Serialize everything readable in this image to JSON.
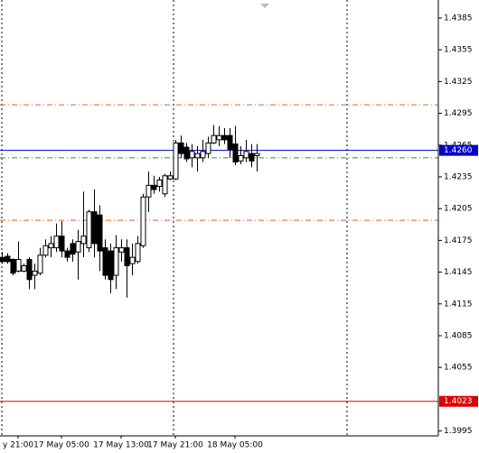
{
  "chart_data": {
    "type": "candlestick",
    "categories": [
      null,
      null,
      null,
      "y 21:00",
      null,
      null,
      null,
      null,
      null,
      null,
      null,
      "17 May 05:00",
      null,
      null,
      null,
      null,
      null,
      null,
      null,
      null,
      null,
      null,
      "17 May 13:00",
      null,
      null,
      null,
      null,
      null,
      null,
      null,
      null,
      null,
      "17 May 21:00",
      null,
      null,
      null,
      null,
      null,
      null,
      null,
      null,
      null,
      null,
      "18 May 05:00",
      null,
      null,
      null,
      null
    ],
    "open": [
      1.4159,
      1.416,
      1.4157,
      1.4146,
      1.4146,
      1.4157,
      1.4142,
      1.4144,
      1.4161,
      1.4168,
      1.4168,
      1.4179,
      1.4165,
      1.4172,
      1.4164,
      1.4172,
      1.4168,
      1.4202,
      1.4199,
      1.4168,
      1.4165,
      1.4142,
      1.4164,
      1.4168,
      1.4153,
      1.4155,
      1.417,
      1.4216,
      1.4227,
      1.4226,
      1.4219,
      1.4233,
      1.4233,
      1.4267,
      1.4263,
      1.4253,
      1.4253,
      1.4253,
      1.4257,
      1.4267,
      1.427,
      1.4274,
      1.4274,
      1.4266,
      1.425,
      1.4253,
      1.4257,
      1.4255
    ],
    "high": [
      1.4164,
      1.4163,
      1.4158,
      1.4174,
      1.4153,
      1.4159,
      1.4153,
      1.4168,
      1.4176,
      1.4179,
      1.4191,
      1.4193,
      1.4168,
      1.4176,
      1.4185,
      1.4221,
      1.4204,
      1.4223,
      1.4208,
      1.4176,
      1.4172,
      1.418,
      1.4176,
      1.4176,
      1.4172,
      1.4179,
      1.4219,
      1.424,
      1.4236,
      1.4235,
      1.4238,
      1.424,
      1.427,
      1.4274,
      1.4267,
      1.4266,
      1.4264,
      1.427,
      1.4273,
      1.4284,
      1.4283,
      1.4281,
      1.4281,
      1.4283,
      1.4264,
      1.427,
      1.4266,
      1.4266
    ],
    "low": [
      1.4153,
      1.4153,
      1.4142,
      1.4145,
      1.4145,
      1.4129,
      1.4129,
      1.4142,
      1.4159,
      1.4159,
      1.4164,
      1.4159,
      1.4155,
      1.4155,
      1.4138,
      1.4159,
      1.4164,
      1.4159,
      1.4146,
      1.4138,
      1.4125,
      1.4129,
      1.4155,
      1.4121,
      1.4142,
      1.4153,
      1.4168,
      1.4202,
      1.4219,
      1.4221,
      1.4216,
      1.4232,
      1.4232,
      1.4253,
      1.4249,
      1.4244,
      1.424,
      1.4249,
      1.4253,
      1.4266,
      1.4264,
      1.4266,
      1.4253,
      1.4246,
      1.4247,
      1.4249,
      1.4244,
      1.424
    ],
    "close": [
      1.4155,
      1.4155,
      1.4144,
      1.4157,
      1.4151,
      1.4138,
      1.4146,
      1.4161,
      1.417,
      1.4172,
      1.4179,
      1.4165,
      1.4159,
      1.4162,
      1.4174,
      1.4179,
      1.4202,
      1.4172,
      1.4165,
      1.4142,
      1.4138,
      1.4168,
      1.4168,
      1.4151,
      1.4159,
      1.4172,
      1.4216,
      1.4227,
      1.4223,
      1.4232,
      1.4236,
      1.4236,
      1.4267,
      1.4257,
      1.4252,
      1.4259,
      1.4257,
      1.4259,
      1.4267,
      1.4274,
      1.4274,
      1.427,
      1.4261,
      1.4249,
      1.4255,
      1.4259,
      1.425,
      1.4257
    ],
    "ylim": [
      1.39904,
      1.4402
    ],
    "yticks": [
      1.4385,
      1.4355,
      1.4325,
      1.4295,
      1.4265,
      1.4235,
      1.4205,
      1.4175,
      1.4145,
      1.4115,
      1.4085,
      1.4055,
      1.3995
    ],
    "price_lines": [
      {
        "value": 1.426,
        "label": "1.4260",
        "color": "#0000c8"
      },
      {
        "value": 1.4023,
        "label": "1.4023",
        "color": "#e00000"
      }
    ],
    "levels": [
      {
        "value": 1.4303,
        "color": "#e0602a"
      },
      {
        "value": 1.4194,
        "color": "#e0602a"
      },
      {
        "value": 1.4253,
        "color": "#2e8b57"
      }
    ],
    "up_color": "#ffffff",
    "down_color": "#000000"
  }
}
